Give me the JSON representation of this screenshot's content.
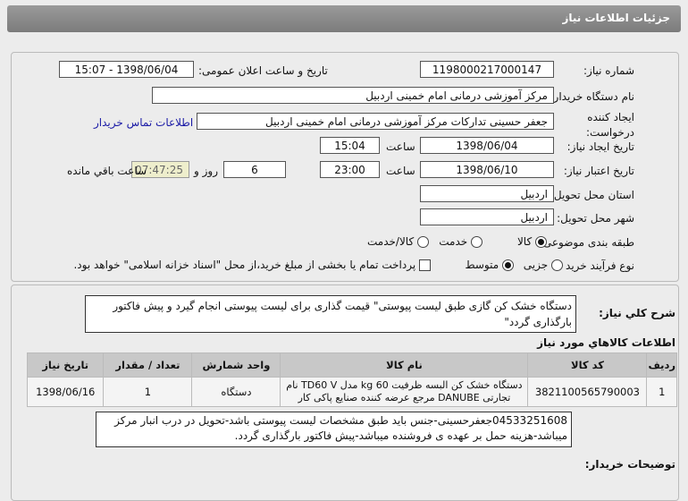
{
  "header": {
    "title": "جزئیات اطلاعات نیاز"
  },
  "form": {
    "need_number_label": "شماره نیاز:",
    "need_number": "1198000217000147",
    "announce_label": "تاریخ و ساعت اعلان عمومی:",
    "announce_value": "1398/06/04 - 15:07",
    "buyer_label": "نام دستگاه خریدار:",
    "buyer": "مرکز آموزشی درمانی امام خمینی اردبیل",
    "creator_label": "ایجاد کننده درخواست:",
    "creator": "جعفر حسینی تدارکات  مرکز آموزشی درمانی امام خمینی اردبیل",
    "contact_link": "اطلاعات تماس خریدار",
    "created_label": "تاریخ ایجاد نیاز:",
    "created_date": "1398/06/04",
    "time_label": "ساعت",
    "created_time": "15:04",
    "valid_label": "تاریخ اعتبار نیاز:",
    "valid_date": "1398/06/10",
    "valid_time": "23:00",
    "days": "6",
    "days_label": "روز و",
    "remaining": "07:47:25",
    "remaining_label": "ساعت باقي مانده",
    "province_label": "استان محل تحویل:",
    "province": "اردبیل",
    "city_label": "شهر محل تحویل:",
    "city": "اردبیل",
    "category_label": "طبقه بندی موضوعی:",
    "category_options": [
      "کالا",
      "خدمت",
      "کالا/خدمت"
    ],
    "category_selected": "کالا",
    "process_label": "نوع فرآیند خرید :",
    "process_options": [
      "جزیی",
      "متوسط"
    ],
    "process_selected": "متوسط",
    "payment_note": "پرداخت تمام یا بخشی از مبلغ خرید،از محل \"اسناد خزانه اسلامی\" خواهد بود."
  },
  "summary": {
    "label": "شرح کلي نياز:",
    "text": "دستگاه خشک کن گازی طبق لیست پیوستی\" قیمت گذاری برای لیست پیوستی انجام گیرد و پیش فاکتور بارگذاری گردد\""
  },
  "goods": {
    "title": "اطلاعات کالاهاي مورد نياز",
    "columns": [
      "ردیف",
      "کد کالا",
      "نام کالا",
      "واحد شمارش",
      "تعداد / مقدار",
      "تاریخ نیاز"
    ],
    "rows": [
      [
        "1",
        "3821100565790003",
        "دستگاه خشک کن البسه ظرفیت 60 kg مدل TD60 V نام تجارتی DANUBE مرجع عرضه کننده صنایع پاکی کار",
        "دستگاه",
        "1",
        "1398/06/16"
      ]
    ]
  },
  "notes": {
    "label": "توضیحات خریدار:",
    "text": "04533251608جعفرحسینی-جنس باید طبق مشخصات لیست پیوستی باشد-تحویل در درب انبار مرکز میباشد-هزینه حمل بر عهده ی فروشنده میباشد-پیش فاکتور بارگذاری گردد."
  },
  "colors": {
    "header": "#8a8a8a",
    "link": "#1a1aa6",
    "remaining_bg": "#eeeecc",
    "table_header": "#c8c8c8"
  }
}
